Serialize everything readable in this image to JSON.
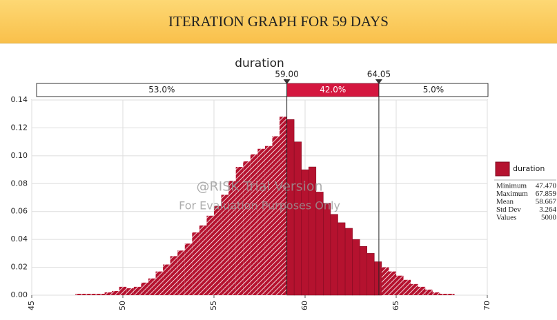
{
  "header": {
    "title": "ITERATION GRAPH FOR 59 DAYS"
  },
  "chart_data": {
    "type": "histogram",
    "title": "duration",
    "bins": [
      47.4,
      47.8,
      48.2,
      48.6,
      49,
      49.4,
      49.8,
      50.2,
      50.6,
      51,
      51.4,
      51.8,
      52.2,
      52.6,
      53,
      53.4,
      53.8,
      54.2,
      54.6,
      55,
      55.4,
      55.8,
      56.2,
      56.6,
      57,
      57.4,
      57.8,
      58.2,
      58.6,
      59,
      59.4,
      59.8,
      60.2,
      60.6,
      61,
      61.4,
      61.8,
      62.2,
      62.6,
      63,
      63.4,
      63.8,
      64.2,
      64.6,
      65,
      65.4,
      65.8,
      66.2,
      66.6,
      67,
      67.4,
      67.8,
      68.2
    ],
    "series": [
      {
        "name": "duration",
        "color": "#b5122f",
        "values": [
          0.001,
          0.001,
          0.001,
          0.001,
          0.002,
          0.003,
          0.006,
          0.005,
          0.006,
          0.009,
          0.012,
          0.017,
          0.022,
          0.028,
          0.032,
          0.037,
          0.045,
          0.05,
          0.057,
          0.064,
          0.072,
          0.082,
          0.092,
          0.096,
          0.101,
          0.105,
          0.107,
          0.114,
          0.128,
          0.126,
          0.11,
          0.09,
          0.092,
          0.074,
          0.066,
          0.058,
          0.052,
          0.048,
          0.04,
          0.035,
          0.03,
          0.024,
          0.02,
          0.017,
          0.014,
          0.011,
          0.008,
          0.006,
          0.004,
          0.002,
          0.001,
          0.001
        ]
      }
    ],
    "xlim": [
      45,
      70
    ],
    "xticks": [
      45,
      50,
      55,
      60,
      65,
      70
    ],
    "ylim": [
      0,
      0.14
    ],
    "yticks": [
      {
        "value": 0,
        "label": "0.00"
      },
      {
        "value": 0.02,
        "label": "0.02"
      },
      {
        "value": 0.04,
        "label": "0.04"
      },
      {
        "value": 0.06,
        "label": "0.06"
      },
      {
        "value": 0.08,
        "label": "0.08"
      },
      {
        "value": 0.1,
        "label": "0.10"
      },
      {
        "value": 0.12,
        "label": "0.12"
      },
      {
        "value": 0.14,
        "label": "0.14"
      }
    ],
    "grid": true,
    "delimiters": [
      {
        "value": 59,
        "label": "59.00"
      },
      {
        "value": 64.05,
        "label": "64.05"
      }
    ],
    "regions": [
      {
        "value": 53,
        "label": "53.0%"
      },
      {
        "value": 42,
        "label": "42.0%"
      },
      {
        "value": 5,
        "label": "5.0%"
      }
    ],
    "watermark": [
      "@RISK Trial Version",
      "For Evaluation Purposes Only"
    ],
    "statistics": [
      {
        "label": "Minimum",
        "value": "47.470"
      },
      {
        "label": "Maximum",
        "value": "67.859"
      },
      {
        "label": "Mean",
        "value": "58.667"
      },
      {
        "label": "Std Dev",
        "value": "3.264"
      },
      {
        "label": "Values",
        "value": "5000"
      }
    ]
  }
}
